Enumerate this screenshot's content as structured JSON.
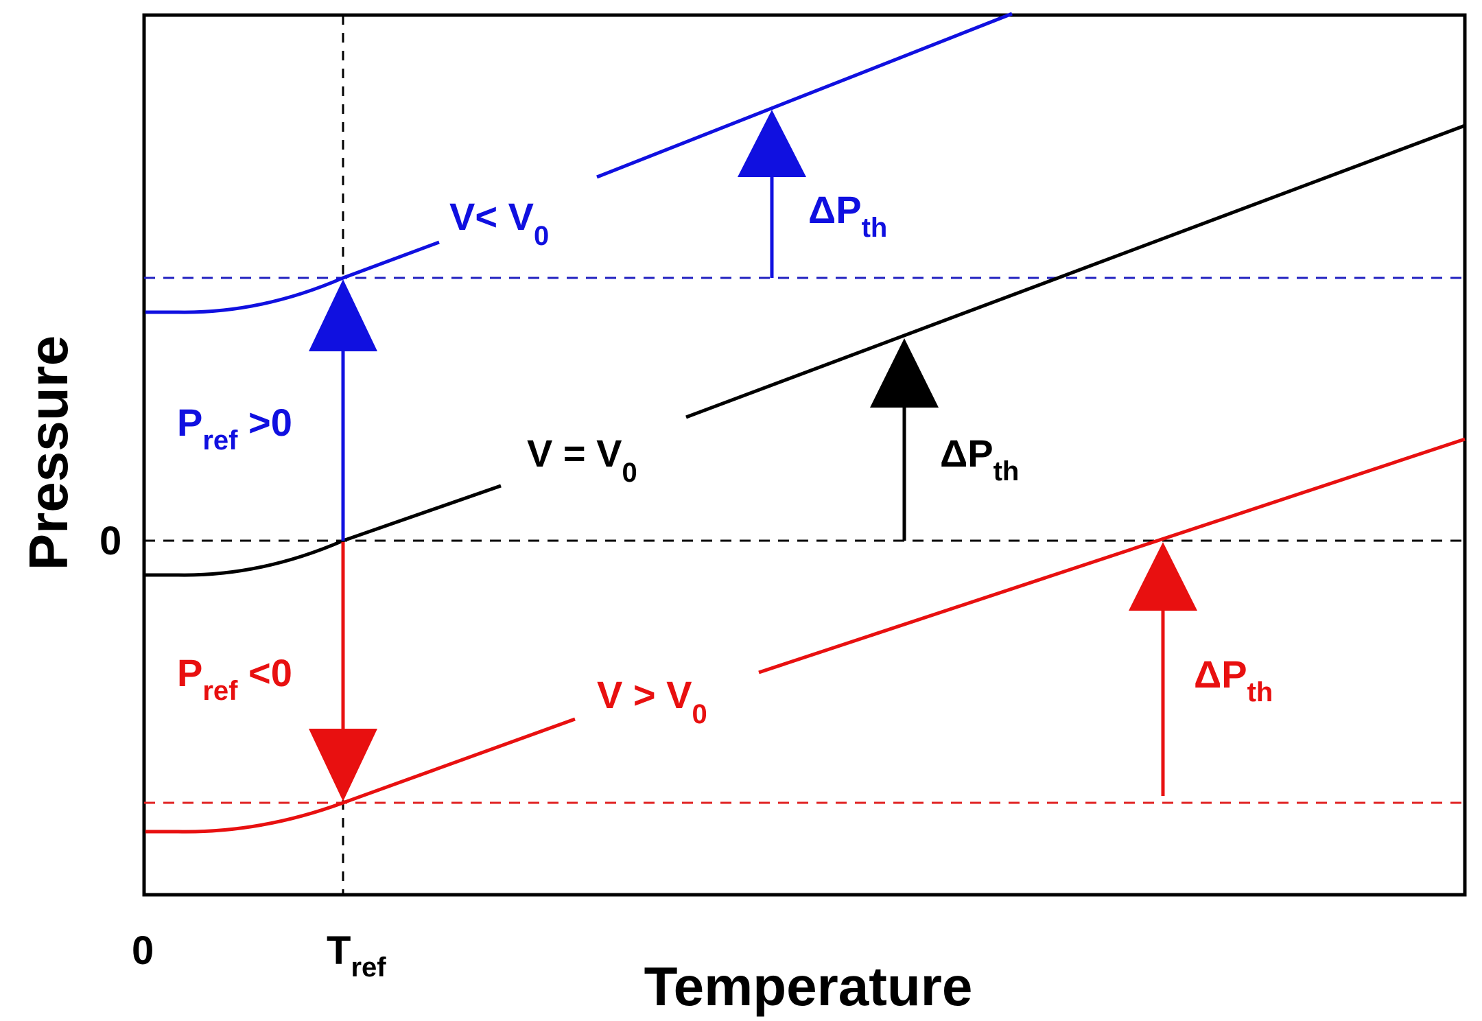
{
  "axes": {
    "x_title": "Temperature",
    "y_title": "Pressure",
    "x_tick_zero": "0",
    "x_tick_tref": {
      "main": "T",
      "sub": "ref"
    },
    "y_tick_zero": "0"
  },
  "curves": {
    "blue": {
      "main": "V< V",
      "sub": "0",
      "color": "#1010e0"
    },
    "black": {
      "main": "V = V",
      "sub": "0",
      "color": "#000000"
    },
    "red": {
      "main": "V > V",
      "sub": "0",
      "color": "#e81010"
    }
  },
  "labels": {
    "p_ref_pos": {
      "main": "P",
      "sub": "ref",
      "tail": " >0"
    },
    "p_ref_neg": {
      "main": "P",
      "sub": "ref",
      "tail": " <0"
    },
    "delta_blue": {
      "main": "ΔP",
      "sub": "th"
    },
    "delta_black": {
      "main": "ΔP",
      "sub": "th"
    },
    "delta_red": {
      "main": "ΔP",
      "sub": "th"
    }
  }
}
